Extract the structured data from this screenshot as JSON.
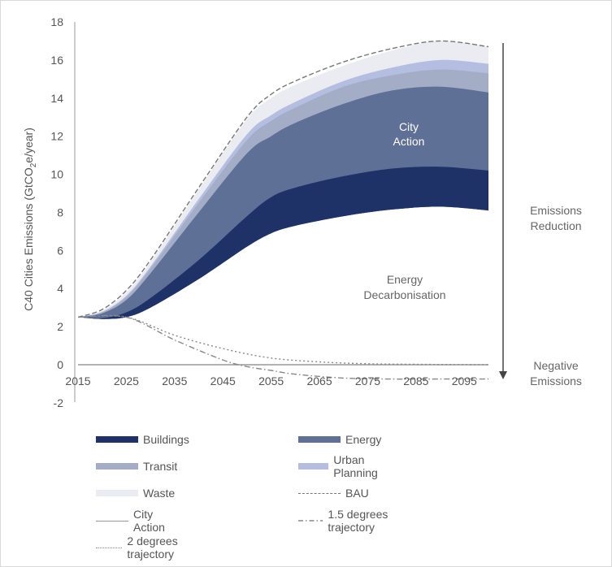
{
  "chart_data": {
    "type": "area",
    "ylabel_parts": [
      "C40 Cities Emissions (GtCO",
      "2",
      "e/year)"
    ],
    "yticks": [
      18,
      16,
      14,
      12,
      10,
      8,
      6,
      4,
      2,
      0,
      -2
    ],
    "xticks": [
      "2015",
      "2025",
      "2035",
      "2045",
      "2055",
      "2065",
      "2075",
      "2085",
      "2095"
    ],
    "ylim": [
      -2,
      18
    ],
    "xlim": [
      2015,
      2100
    ],
    "x": [
      2015,
      2020,
      2025,
      2030,
      2040,
      2050,
      2055,
      2060,
      2070,
      2080,
      2090,
      2100
    ],
    "floor": [
      2.5,
      2.4,
      2.5,
      3.0,
      4.5,
      6.2,
      6.9,
      7.3,
      7.8,
      8.15,
      8.3,
      8.1
    ],
    "series": [
      {
        "name": "Buildings",
        "color": "#1f3268",
        "top": [
          2.5,
          2.45,
          2.75,
          3.5,
          5.5,
          7.8,
          8.8,
          9.3,
          9.9,
          10.3,
          10.4,
          10.2
        ]
      },
      {
        "name": "Energy",
        "color": "#5f7097",
        "top": [
          2.5,
          2.7,
          3.4,
          4.8,
          8.0,
          11.1,
          12.0,
          12.7,
          13.7,
          14.4,
          14.6,
          14.3
        ]
      },
      {
        "name": "Transit",
        "color": "#a4adc6",
        "top": [
          2.5,
          2.75,
          3.55,
          5.05,
          8.5,
          11.8,
          12.8,
          13.5,
          14.6,
          15.2,
          15.5,
          15.3
        ]
      },
      {
        "name": "Urban Planning",
        "color": "#b3bee0",
        "top": [
          2.5,
          2.78,
          3.62,
          5.15,
          8.7,
          12.1,
          13.1,
          13.8,
          14.9,
          15.6,
          16.0,
          15.8
        ]
      },
      {
        "name": "Waste",
        "color": "#ebecf1",
        "top": [
          2.5,
          2.85,
          3.8,
          5.4,
          9.2,
          12.9,
          14.0,
          14.7,
          15.7,
          16.5,
          17.0,
          16.7
        ]
      }
    ],
    "lines": [
      {
        "name": "BAU",
        "style": "dashed",
        "color": "#777777",
        "x": [
          2015,
          2020,
          2025,
          2030,
          2040,
          2050,
          2055,
          2060,
          2070,
          2080,
          2090,
          2100
        ],
        "y": [
          2.5,
          2.9,
          3.9,
          5.5,
          9.3,
          13.0,
          14.2,
          14.9,
          15.9,
          16.6,
          17.0,
          16.7
        ]
      },
      {
        "name": "City Action",
        "style": "solid",
        "color": "#999999",
        "x": [
          2015,
          2100
        ],
        "y": [
          0,
          0
        ]
      },
      {
        "name": "1.5 degrees trajectory",
        "style": "dashdot",
        "color": "#888888",
        "x": [
          2015,
          2025,
          2035,
          2045,
          2050,
          2055,
          2060,
          2070,
          2080,
          2090,
          2100
        ],
        "y": [
          2.5,
          2.5,
          1.3,
          0.25,
          -0.1,
          -0.3,
          -0.5,
          -0.7,
          -0.75,
          -0.75,
          -0.75
        ]
      },
      {
        "name": "2 degrees trajectory",
        "style": "dotted",
        "color": "#888888",
        "x": [
          2015,
          2025,
          2035,
          2045,
          2055,
          2065,
          2075,
          2085,
          2100
        ],
        "y": [
          2.5,
          2.5,
          1.55,
          0.85,
          0.35,
          0.15,
          0.05,
          0.02,
          0.0
        ]
      }
    ],
    "annotations": {
      "city_action": [
        "City",
        "Action"
      ],
      "energy_decarbonisation": [
        "Energy",
        "Decarbonisation"
      ],
      "emissions_reduction": [
        "Emissions",
        "Reduction"
      ],
      "negative_emissions": [
        "Negative",
        "Emissions"
      ]
    },
    "legend": [
      {
        "name": "Buildings",
        "kind": "area",
        "color": "#1f3268"
      },
      {
        "name": "Energy",
        "kind": "area",
        "color": "#5f7097"
      },
      {
        "name": "Transit",
        "kind": "area",
        "color": "#a4adc6"
      },
      {
        "name": "Urban Planning",
        "kind": "area",
        "color": "#b3bee0"
      },
      {
        "name": "Waste",
        "kind": "area",
        "color": "#ebecf1"
      },
      {
        "name": "BAU",
        "kind": "dashed",
        "color": "#777777"
      },
      {
        "name": "City Action",
        "kind": "solid",
        "color": "#999999"
      },
      {
        "name": "1.5 degrees trajectory",
        "kind": "dashdot",
        "color": "#888888"
      },
      {
        "name": "2 degrees trajectory",
        "kind": "dotted",
        "color": "#888888"
      }
    ]
  }
}
